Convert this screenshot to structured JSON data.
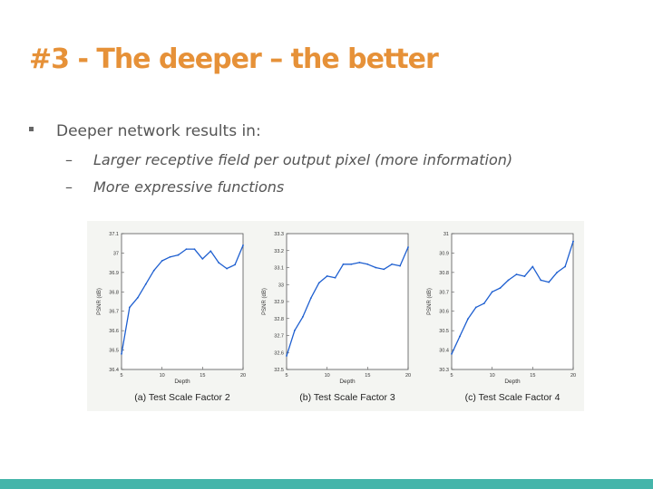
{
  "slide": {
    "title": "#3 - The deeper – the better",
    "bullet": "Deeper network results in:",
    "subbullets": [
      {
        "dash": "–",
        "text": "Larger receptive field per output pixel (more information)"
      },
      {
        "dash": "–",
        "text": "More expressive functions"
      }
    ]
  },
  "colors": {
    "title": "#e69138",
    "bar": "#45b5aa",
    "line": "#1e5fd0"
  },
  "chart_data": [
    {
      "type": "line",
      "caption": "(a) Test Scale Factor 2",
      "xlabel": "Depth",
      "ylabel": "PSNR (dB)",
      "xticks": [
        "5",
        "10",
        "15",
        "20"
      ],
      "yticks": [
        "36.4",
        "36.5",
        "36.6",
        "36.7",
        "36.8",
        "36.9",
        "37",
        "37.1"
      ],
      "xlim": [
        5,
        20
      ],
      "ylim": [
        36.4,
        37.1
      ],
      "x": [
        5,
        6,
        7,
        8,
        9,
        10,
        11,
        12,
        13,
        14,
        15,
        16,
        17,
        18,
        19,
        20
      ],
      "values": [
        36.48,
        36.72,
        36.77,
        36.84,
        36.91,
        36.96,
        36.98,
        36.99,
        37.02,
        37.02,
        36.97,
        37.01,
        36.95,
        36.92,
        36.94,
        37.04
      ]
    },
    {
      "type": "line",
      "caption": "(b) Test Scale Factor 3",
      "xlabel": "Depth",
      "ylabel": "PSNR (dB)",
      "xticks": [
        "5",
        "10",
        "15",
        "20"
      ],
      "yticks": [
        "32.5",
        "32.6",
        "32.7",
        "32.8",
        "32.9",
        "33",
        "33.1",
        "33.2",
        "33.3"
      ],
      "xlim": [
        5,
        20
      ],
      "ylim": [
        32.5,
        33.3
      ],
      "x": [
        5,
        6,
        7,
        8,
        9,
        10,
        11,
        12,
        13,
        14,
        15,
        16,
        17,
        18,
        19,
        20
      ],
      "values": [
        32.58,
        32.73,
        32.81,
        32.92,
        33.01,
        33.05,
        33.04,
        33.12,
        33.12,
        33.13,
        33.12,
        33.1,
        33.09,
        33.12,
        33.11,
        33.22
      ]
    },
    {
      "type": "line",
      "caption": "(c) Test Scale Factor 4",
      "xlabel": "Depth",
      "ylabel": "PSNR (dB)",
      "xticks": [
        "5",
        "10",
        "15",
        "20"
      ],
      "yticks": [
        "30.3",
        "30.4",
        "30.5",
        "30.6",
        "30.7",
        "30.8",
        "30.9",
        "31"
      ],
      "xlim": [
        5,
        20
      ],
      "ylim": [
        30.3,
        31
      ],
      "x": [
        5,
        6,
        7,
        8,
        9,
        10,
        11,
        12,
        13,
        14,
        15,
        16,
        17,
        18,
        19,
        20
      ],
      "values": [
        30.38,
        30.47,
        30.56,
        30.62,
        30.64,
        30.7,
        30.72,
        30.76,
        30.79,
        30.78,
        30.83,
        30.76,
        30.75,
        30.8,
        30.83,
        30.96
      ]
    }
  ]
}
